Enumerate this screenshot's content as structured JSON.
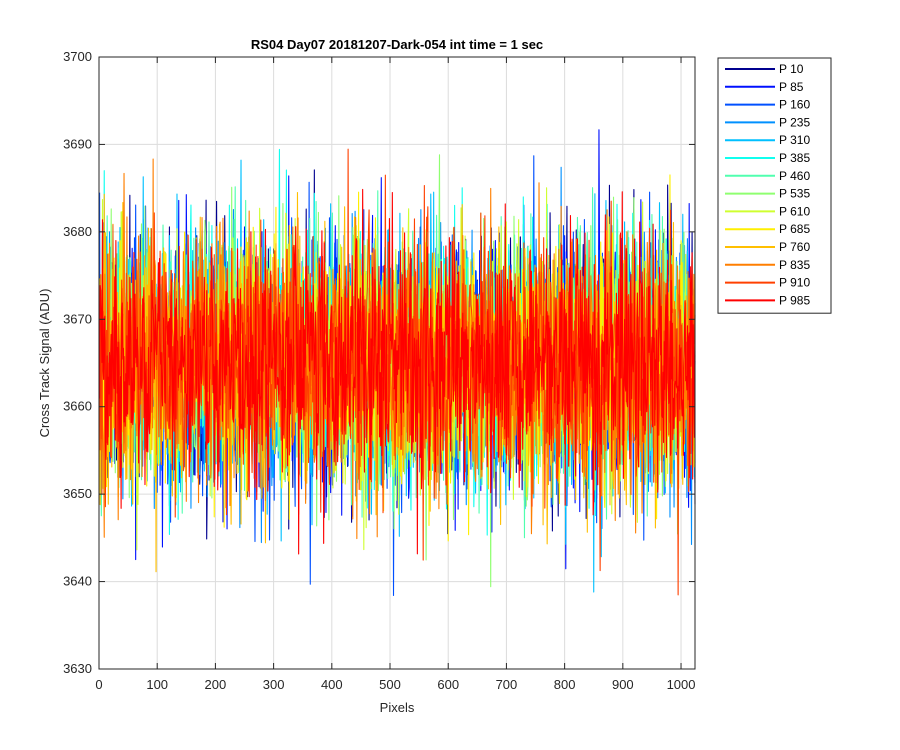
{
  "chart_data": {
    "type": "line",
    "title": "RS04 Day07 20181207-Dark-054 int time = 1 sec",
    "xlabel": "Pixels",
    "ylabel": "Cross Track Signal (ADU)",
    "xlim": [
      0,
      1024
    ],
    "ylim": [
      3630,
      3700
    ],
    "xticks": [
      0,
      100,
      200,
      300,
      400,
      500,
      600,
      700,
      800,
      900,
      1000
    ],
    "yticks": [
      3630,
      3640,
      3650,
      3660,
      3670,
      3680,
      3690,
      3700
    ],
    "grid": true,
    "legend_position": "outside-right",
    "noise_model": {
      "mean": 3665,
      "std": 7,
      "n_points": 1024,
      "x_start": 1,
      "x_end": 1024,
      "approx_min": 3638,
      "approx_max": 3693
    },
    "series": [
      {
        "name": "P 10",
        "color": "#00008F"
      },
      {
        "name": "P 85",
        "color": "#0010FF"
      },
      {
        "name": "P 160",
        "color": "#0050FF"
      },
      {
        "name": "P 235",
        "color": "#0090FF"
      },
      {
        "name": "P 310",
        "color": "#00C0FF"
      },
      {
        "name": "P 385",
        "color": "#10FFEF"
      },
      {
        "name": "P 460",
        "color": "#50FFAF"
      },
      {
        "name": "P 535",
        "color": "#8FFF70"
      },
      {
        "name": "P 610",
        "color": "#CFFF30"
      },
      {
        "name": "P 685",
        "color": "#FFEF00"
      },
      {
        "name": "P 760",
        "color": "#FFBF00"
      },
      {
        "name": "P 835",
        "color": "#FF7F00"
      },
      {
        "name": "P 910",
        "color": "#FF4000"
      },
      {
        "name": "P 985",
        "color": "#FF0000"
      }
    ]
  }
}
